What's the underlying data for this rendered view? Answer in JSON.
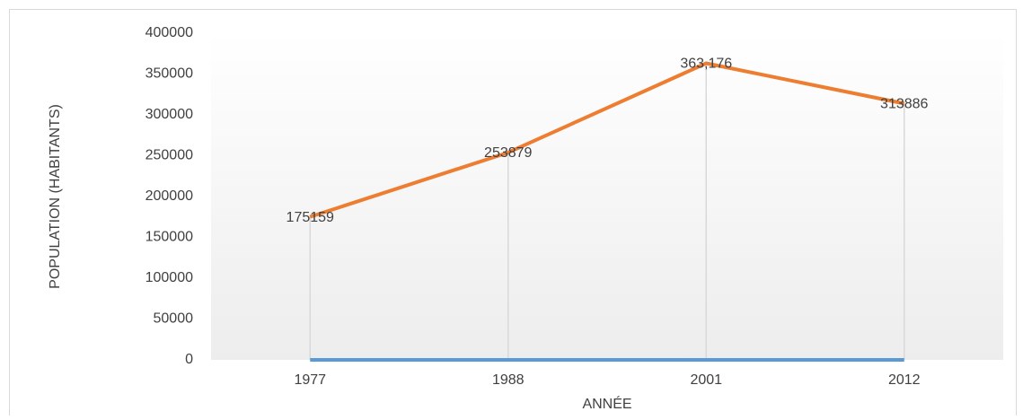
{
  "chart_data": {
    "type": "line",
    "y_label": "POPULATION (HABITANTS)",
    "x_label": "ANNÉE",
    "categories": [
      "1977",
      "1988",
      "2001",
      "2012"
    ],
    "series": [
      {
        "color": "#5b9bd5",
        "values": [
          0,
          0,
          0,
          0
        ]
      },
      {
        "color": "#ed7d31",
        "values": [
          175159,
          253879,
          363176,
          313886
        ],
        "value_labels": [
          "175159",
          "253879",
          "363,176",
          "313886"
        ]
      }
    ],
    "ylim": [
      0,
      400000
    ],
    "yticks": [
      0,
      50000,
      100000,
      150000,
      200000,
      250000,
      300000,
      350000,
      400000
    ],
    "drop_lines": true
  }
}
